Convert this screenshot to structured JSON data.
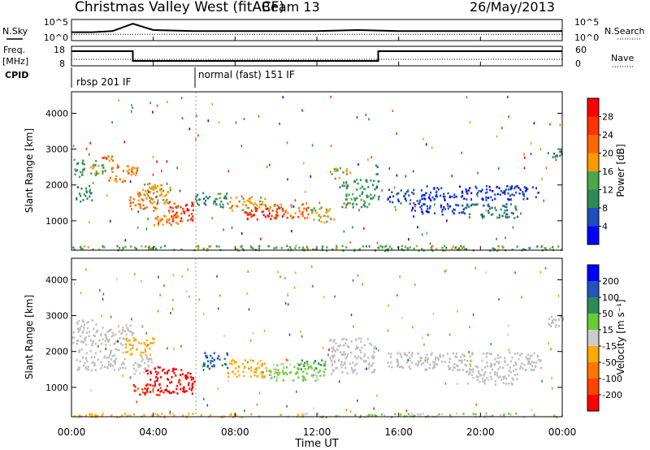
{
  "header": {
    "title": "Christmas Valley West (fitACF)",
    "beam": "Beam 13",
    "date": "26/May/2013"
  },
  "side_labels": {
    "nsky": "N.Sky",
    "nsearch": "N.Search",
    "freq_line1": "Freq.",
    "freq_line2": "[MHz]",
    "nave": "Nave",
    "cpid": "CPID"
  },
  "colors": {
    "power_scale": [
      "#0000ff",
      "#1f4fbf",
      "#2e8b57",
      "#4ca64c",
      "#ff9900",
      "#ff6600",
      "#ff3300",
      "#ff0000"
    ],
    "velocity_scale": [
      "#0000ff",
      "#2255bb",
      "#2e8b57",
      "#66cc33",
      "#cccccc",
      "#ffaa00",
      "#ff7700",
      "#ff4400",
      "#ff0000"
    ],
    "ground_scatter": "#bebebe"
  },
  "chart_data": [
    {
      "type": "line",
      "name": "noise-panel",
      "left_ticks": [
        "10^5",
        "10^0"
      ],
      "right_ticks": [
        "10^5",
        "10^0"
      ],
      "series": [
        {
          "name": "N.Sky",
          "x": [
            "00:00",
            "01:00",
            "02:00",
            "03:00",
            "04:00",
            "06:00",
            "08:00",
            "10:00",
            "12:00",
            "14:00",
            "16:00",
            "18:00",
            "20:00",
            "22:00",
            "24:00"
          ],
          "values": [
            0.4,
            0.4,
            0.45,
            0.8,
            0.5,
            0.45,
            0.45,
            0.45,
            0.45,
            0.5,
            0.45,
            0.45,
            0.45,
            0.45,
            0.45
          ]
        },
        {
          "name": "N.Search",
          "x": [
            "00:00",
            "24:00"
          ],
          "values": [
            0.3,
            0.3
          ]
        }
      ]
    },
    {
      "type": "line",
      "name": "frequency-panel",
      "left_ticks": [
        "18",
        "8"
      ],
      "right_ticks": [
        "60",
        "0"
      ],
      "series": [
        {
          "name": "Freq",
          "x": [
            "00:00",
            "03:00",
            "03:00",
            "15:00",
            "15:00",
            "24:00"
          ],
          "values": [
            16,
            16,
            10,
            10,
            16,
            16
          ]
        },
        {
          "name": "Nave",
          "x": [
            "00:00",
            "24:00"
          ],
          "values": [
            20,
            20
          ]
        }
      ]
    },
    {
      "type": "table",
      "name": "cpid-panel",
      "segments": [
        {
          "start": "00:00",
          "label": "rbsp 201 IF"
        },
        {
          "start": "06:00",
          "label": "normal (fast) 151 IF"
        }
      ]
    },
    {
      "type": "heatmap",
      "name": "power-panel",
      "ylabel": "Slant Range [km]",
      "y_ticks": [
        1000,
        2000,
        3000,
        4000
      ],
      "ylim": [
        180,
        4600
      ],
      "colorbar_label": "Power [dB]",
      "colorbar_ticks": [
        4,
        8,
        12,
        16,
        20,
        24,
        28
      ],
      "clim": [
        0,
        32
      ],
      "regions": [
        {
          "x": [
            0.0,
            0.6
          ],
          "r": [
            2200,
            2800
          ],
          "v": 12
        },
        {
          "x": [
            0.2,
            1.0
          ],
          "r": [
            1500,
            2000
          ],
          "v": 10
        },
        {
          "x": [
            0.8,
            1.8
          ],
          "r": [
            2300,
            2700
          ],
          "v": 14
        },
        {
          "x": [
            1.2,
            2.0
          ],
          "r": [
            2700,
            2900
          ],
          "v": 22
        },
        {
          "x": [
            1.8,
            3.2
          ],
          "r": [
            2100,
            2600
          ],
          "v": 20
        },
        {
          "x": [
            3.2,
            4.4
          ],
          "r": [
            1700,
            2100
          ],
          "v": 18
        },
        {
          "x": [
            2.8,
            4.2
          ],
          "r": [
            1300,
            1700
          ],
          "v": 22
        },
        {
          "x": [
            3.6,
            4.8
          ],
          "r": [
            1500,
            2000
          ],
          "v": 17
        },
        {
          "x": [
            4.6,
            6.0
          ],
          "r": [
            1000,
            1600
          ],
          "v": 26
        },
        {
          "x": [
            4.0,
            5.6
          ],
          "r": [
            900,
            1200
          ],
          "v": 20
        },
        {
          "x": [
            6.0,
            7.6
          ],
          "r": [
            1400,
            1800
          ],
          "v": 10
        },
        {
          "x": [
            7.6,
            9.6
          ],
          "r": [
            1300,
            1700
          ],
          "v": 18
        },
        {
          "x": [
            8.4,
            10.4
          ],
          "r": [
            1050,
            1400
          ],
          "v": 27
        },
        {
          "x": [
            9.6,
            11.6
          ],
          "r": [
            1100,
            1500
          ],
          "v": 22
        },
        {
          "x": [
            11.6,
            12.8
          ],
          "r": [
            1000,
            1400
          ],
          "v": 16
        },
        {
          "x": [
            12.6,
            13.6
          ],
          "r": [
            2200,
            2500
          ],
          "v": 15
        },
        {
          "x": [
            13.2,
            14.8
          ],
          "r": [
            1400,
            2200
          ],
          "v": 12
        },
        {
          "x": [
            14.8,
            15.0
          ],
          "r": [
            1600,
            2600
          ],
          "v": 8
        },
        {
          "x": [
            15.4,
            17.2
          ],
          "r": [
            1500,
            1900
          ],
          "v": 6
        },
        {
          "x": [
            17.2,
            22.8
          ],
          "r": [
            1600,
            2000
          ],
          "v": 5
        },
        {
          "x": [
            19.2,
            21.8
          ],
          "r": [
            1100,
            1500
          ],
          "v": 9
        },
        {
          "x": [
            16.4,
            19.2
          ],
          "r": [
            1200,
            1500
          ],
          "v": 5
        },
        {
          "x": [
            23.2,
            24.0
          ],
          "r": [
            2700,
            3000
          ],
          "v": 10
        },
        {
          "x": [
            0.0,
            24.0
          ],
          "r": [
            190,
            330
          ],
          "v": 14
        }
      ]
    },
    {
      "type": "heatmap",
      "name": "velocity-panel",
      "ylabel": "Slant Range [km]",
      "y_ticks": [
        1000,
        2000,
        3000,
        4000
      ],
      "ylim": [
        180,
        4600
      ],
      "colorbar_label": "Velocity [m s⁻¹]",
      "colorbar_ticks": [
        200,
        100,
        50,
        15,
        -15,
        -50,
        -100,
        -200
      ],
      "clim": [
        -250,
        250
      ],
      "regions": [
        {
          "x": [
            0.0,
            1.2
          ],
          "r": [
            2200,
            2900
          ],
          "v": 0
        },
        {
          "x": [
            0.2,
            2.6
          ],
          "r": [
            1500,
            2100
          ],
          "v": 0
        },
        {
          "x": [
            1.2,
            3.0
          ],
          "r": [
            2200,
            2800
          ],
          "v": 0
        },
        {
          "x": [
            2.6,
            4.0
          ],
          "r": [
            1900,
            2400
          ],
          "v": -60
        },
        {
          "x": [
            3.0,
            4.0
          ],
          "r": [
            1400,
            1900
          ],
          "v": 0
        },
        {
          "x": [
            3.6,
            6.0
          ],
          "r": [
            850,
            1600
          ],
          "v": -230
        },
        {
          "x": [
            3.0,
            4.4
          ],
          "r": [
            800,
            1100
          ],
          "v": -200
        },
        {
          "x": [
            6.4,
            7.6
          ],
          "r": [
            1500,
            2000
          ],
          "v": 150
        },
        {
          "x": [
            7.6,
            9.6
          ],
          "r": [
            1300,
            1800
          ],
          "v": -70
        },
        {
          "x": [
            9.6,
            12.4
          ],
          "r": [
            1200,
            1700
          ],
          "v": 40
        },
        {
          "x": [
            11.0,
            12.4
          ],
          "r": [
            1500,
            1800
          ],
          "v": 90
        },
        {
          "x": [
            12.6,
            14.8
          ],
          "r": [
            1400,
            2400
          ],
          "v": 0
        },
        {
          "x": [
            15.4,
            23.0
          ],
          "r": [
            1500,
            2000
          ],
          "v": 0
        },
        {
          "x": [
            19.2,
            21.8
          ],
          "r": [
            1100,
            1500
          ],
          "v": 0
        },
        {
          "x": [
            23.2,
            24.0
          ],
          "r": [
            2700,
            3100
          ],
          "v": 0
        },
        {
          "x": [
            0.0,
            12.0
          ],
          "r": [
            190,
            300
          ],
          "v": -40
        },
        {
          "x": [
            12.0,
            24.0
          ],
          "r": [
            190,
            300
          ],
          "v": 30
        }
      ]
    }
  ],
  "x_axis": {
    "ticks": [
      "00:00",
      "04:00",
      "08:00",
      "12:00",
      "16:00",
      "20:00",
      "00:00"
    ],
    "label": "Time UT"
  }
}
